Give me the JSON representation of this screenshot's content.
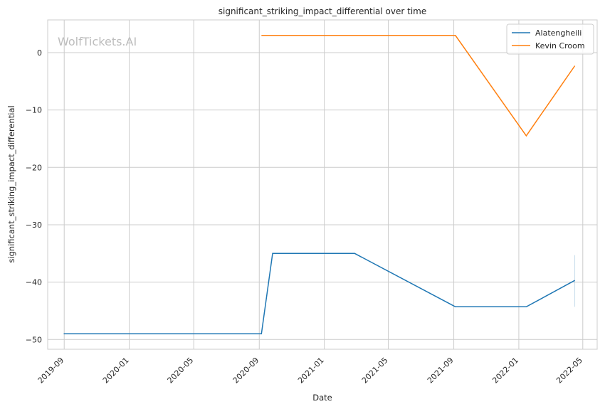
{
  "chart_data": {
    "type": "line",
    "title": "significant_striking_impact_differential over time",
    "xlabel": "Date",
    "ylabel": "significant_striking_impact_differential",
    "watermark": "WolfTickets.AI",
    "x_ticks": [
      "2019-09",
      "2020-01",
      "2020-05",
      "2020-09",
      "2021-01",
      "2021-05",
      "2021-09",
      "2022-01",
      "2022-05"
    ],
    "y_ticks": [
      0,
      -10,
      -20,
      -30,
      -40,
      -50
    ],
    "y_tick_labels": [
      "0",
      "−10",
      "−20",
      "−30",
      "−40",
      "−50"
    ],
    "xlim": [
      "2019-08-01",
      "2022-05-28"
    ],
    "ylim": [
      -51.7,
      5.7
    ],
    "grid": true,
    "legend_position": "top-right",
    "series": [
      {
        "name": "Alatengheili",
        "color": "#1f77b4",
        "x": [
          "2019-08-31",
          "2020-09-05",
          "2020-09-26",
          "2021-02-27",
          "2021-09-04",
          "2022-01-15",
          "2022-04-16"
        ],
        "y": [
          -49,
          -49,
          -35,
          -35,
          -44.3,
          -44.3,
          -39.7
        ],
        "band": {
          "x": "2022-04-16",
          "low": -44.3,
          "high": -35.3
        }
      },
      {
        "name": "Kevin Croom",
        "color": "#ff7f0e",
        "x": [
          "2020-09-05",
          "2021-09-04",
          "2022-01-15",
          "2022-04-16"
        ],
        "y": [
          3,
          3,
          -14.5,
          -2.3
        ]
      }
    ]
  }
}
